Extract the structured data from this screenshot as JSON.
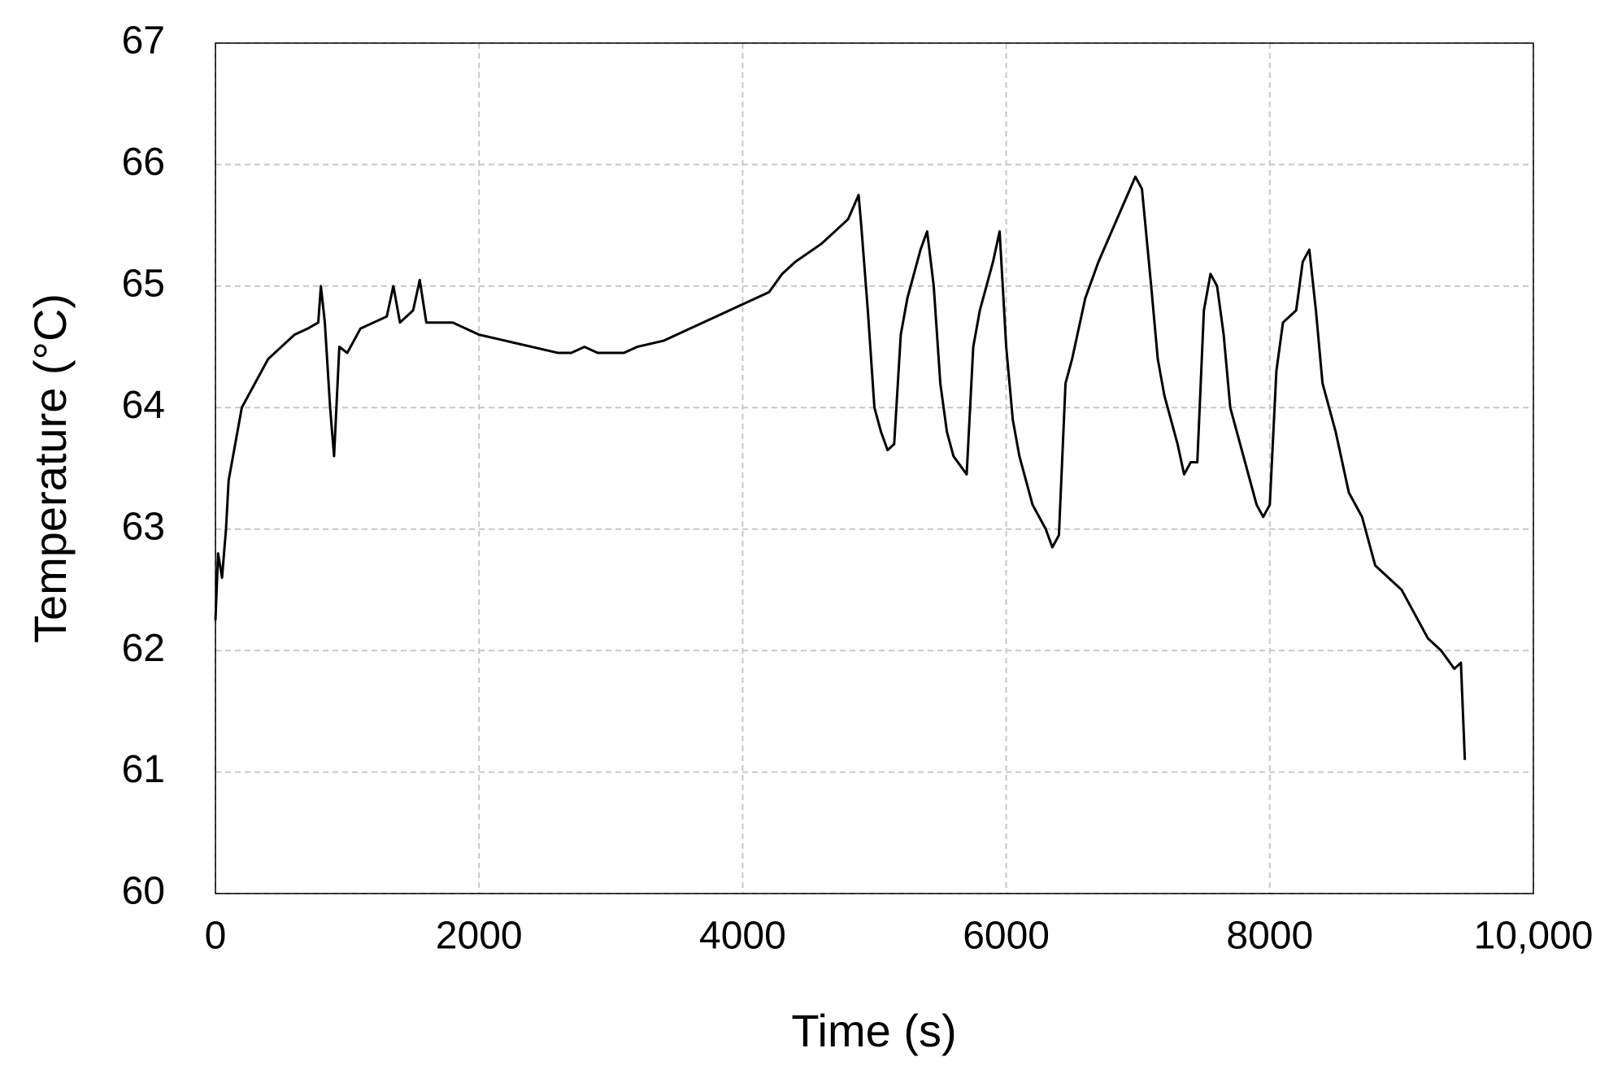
{
  "chart_data": {
    "type": "line",
    "x_label": "Time  (s)",
    "y_label": "Temperature  (°C)",
    "xlim": [
      0,
      10000
    ],
    "xticks": [
      0,
      2000,
      4000,
      6000,
      8000,
      {
        "value": 10000,
        "label": "10,000"
      }
    ],
    "ylim": [
      60,
      67
    ],
    "yticks": [
      60,
      61,
      62,
      63,
      64,
      65,
      66,
      67
    ],
    "grid": true,
    "series": [
      {
        "color": "#000000",
        "x": [
          0,
          20,
          50,
          80,
          100,
          150,
          200,
          250,
          300,
          400,
          500,
          600,
          700,
          780,
          800,
          830,
          870,
          900,
          940,
          1000,
          1100,
          1200,
          1300,
          1350,
          1400,
          1500,
          1550,
          1600,
          1800,
          2000,
          2200,
          2400,
          2600,
          2700,
          2800,
          2900,
          3000,
          3100,
          3200,
          3400,
          3600,
          3800,
          4000,
          4200,
          4300,
          4400,
          4600,
          4800,
          4880,
          4900,
          4950,
          5000,
          5050,
          5100,
          5150,
          5200,
          5250,
          5300,
          5350,
          5400,
          5450,
          5500,
          5550,
          5600,
          5700,
          5750,
          5800,
          5900,
          5950,
          6000,
          6050,
          6100,
          6200,
          6300,
          6350,
          6400,
          6450,
          6500,
          6600,
          6700,
          6800,
          6900,
          6980,
          7030,
          7100,
          7150,
          7200,
          7300,
          7350,
          7400,
          7450,
          7500,
          7550,
          7600,
          7650,
          7700,
          7800,
          7900,
          7950,
          8000,
          8050,
          8100,
          8200,
          8250,
          8300,
          8350,
          8400,
          8500,
          8600,
          8700,
          8800,
          8900,
          9000,
          9100,
          9200,
          9300,
          9400,
          9450,
          9480
        ],
        "values": [
          62.25,
          62.8,
          62.6,
          63.0,
          63.4,
          63.7,
          64.0,
          64.1,
          64.2,
          64.4,
          64.5,
          64.6,
          64.65,
          64.7,
          65.0,
          64.7,
          64.0,
          63.6,
          64.5,
          64.45,
          64.65,
          64.7,
          64.75,
          65.0,
          64.7,
          64.8,
          65.05,
          64.7,
          64.7,
          64.6,
          64.55,
          64.5,
          64.45,
          64.45,
          64.5,
          64.45,
          64.45,
          64.45,
          64.5,
          64.55,
          64.65,
          64.75,
          64.85,
          64.95,
          65.1,
          65.2,
          65.35,
          65.55,
          65.75,
          65.5,
          64.8,
          64.0,
          63.8,
          63.65,
          63.7,
          64.6,
          64.9,
          65.1,
          65.3,
          65.45,
          65.0,
          64.2,
          63.8,
          63.6,
          63.45,
          64.5,
          64.8,
          65.2,
          65.45,
          64.5,
          63.9,
          63.6,
          63.2,
          63.0,
          62.85,
          62.95,
          64.2,
          64.4,
          64.9,
          65.2,
          65.45,
          65.7,
          65.9,
          65.8,
          65.0,
          64.4,
          64.1,
          63.7,
          63.45,
          63.55,
          63.55,
          64.8,
          65.1,
          65.0,
          64.6,
          64.0,
          63.6,
          63.2,
          63.1,
          63.2,
          64.3,
          64.7,
          64.8,
          65.2,
          65.3,
          64.8,
          64.2,
          63.8,
          63.3,
          63.1,
          62.7,
          62.6,
          62.5,
          62.3,
          62.1,
          62.0,
          61.85,
          61.9,
          61.1
        ]
      }
    ]
  }
}
